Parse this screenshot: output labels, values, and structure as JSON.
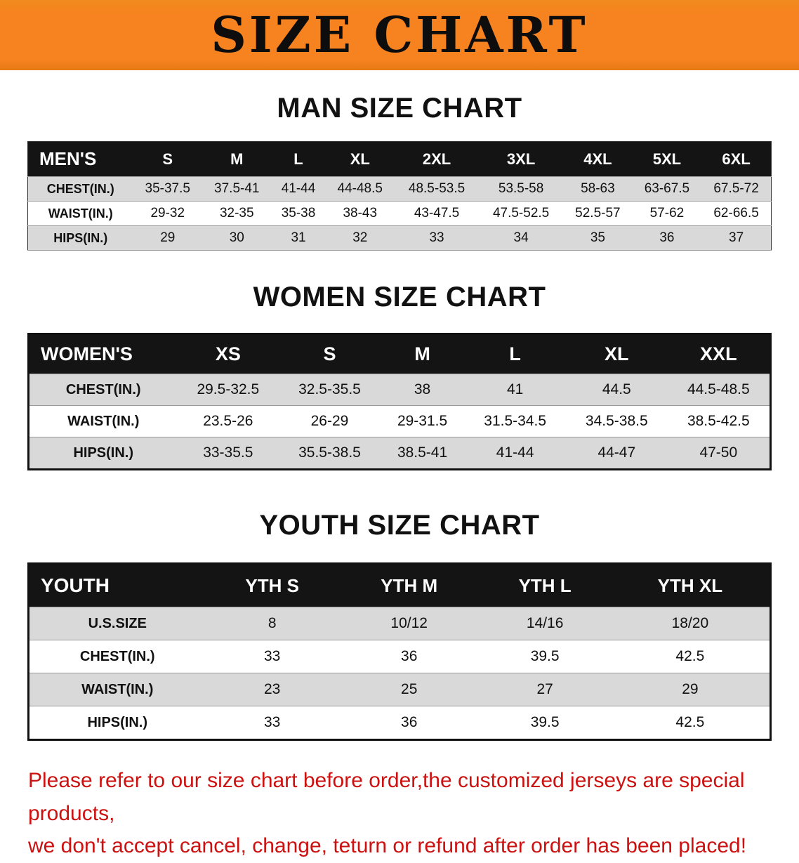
{
  "banner": {
    "title": "SIZE CHART"
  },
  "colors": {
    "banner_orange": "#F6831F",
    "header_black": "#141414",
    "row_gray": "#D9D9D9",
    "disclaimer_red": "#CC1111"
  },
  "sections": [
    {
      "heading": "MAN SIZE CHART",
      "table": {
        "header": [
          "MEN'S",
          "S",
          "M",
          "L",
          "XL",
          "2XL",
          "3XL",
          "4XL",
          "5XL",
          "6XL"
        ],
        "rows": [
          [
            "CHEST(IN.)",
            "35-37.5",
            "37.5-41",
            "41-44",
            "44-48.5",
            "48.5-53.5",
            "53.5-58",
            "58-63",
            "63-67.5",
            "67.5-72"
          ],
          [
            "WAIST(IN.)",
            "29-32",
            "32-35",
            "35-38",
            "38-43",
            "43-47.5",
            "47.5-52.5",
            "52.5-57",
            "57-62",
            "62-66.5"
          ],
          [
            "HIPS(IN.)",
            "29",
            "30",
            "31",
            "32",
            "33",
            "34",
            "35",
            "36",
            "37"
          ]
        ]
      }
    },
    {
      "heading": "WOMEN SIZE CHART",
      "table": {
        "header": [
          "WOMEN'S",
          "XS",
          "S",
          "M",
          "L",
          "XL",
          "XXL"
        ],
        "rows": [
          [
            "CHEST(IN.)",
            "29.5-32.5",
            "32.5-35.5",
            "38",
            "41",
            "44.5",
            "44.5-48.5"
          ],
          [
            "WAIST(IN.)",
            "23.5-26",
            "26-29",
            "29-31.5",
            "31.5-34.5",
            "34.5-38.5",
            "38.5-42.5"
          ],
          [
            "HIPS(IN.)",
            "33-35.5",
            "35.5-38.5",
            "38.5-41",
            "41-44",
            "44-47",
            "47-50"
          ]
        ]
      }
    },
    {
      "heading": "YOUTH SIZE CHART",
      "table": {
        "header": [
          "YOUTH",
          "YTH S",
          "YTH M",
          "YTH L",
          "YTH XL"
        ],
        "rows": [
          [
            "U.S.SIZE",
            "8",
            "10/12",
            "14/16",
            "18/20"
          ],
          [
            "CHEST(IN.)",
            "33",
            "36",
            "39.5",
            "42.5"
          ],
          [
            "WAIST(IN.)",
            "23",
            "25",
            "27",
            "29"
          ],
          [
            "HIPS(IN.)",
            "33",
            "36",
            "39.5",
            "42.5"
          ]
        ]
      }
    }
  ],
  "disclaimer": {
    "line1": "Please refer to our size chart before order,the customized jerseys are special products,",
    "line2": "we don't accept cancel, change, teturn or refund after order has been placed!"
  }
}
